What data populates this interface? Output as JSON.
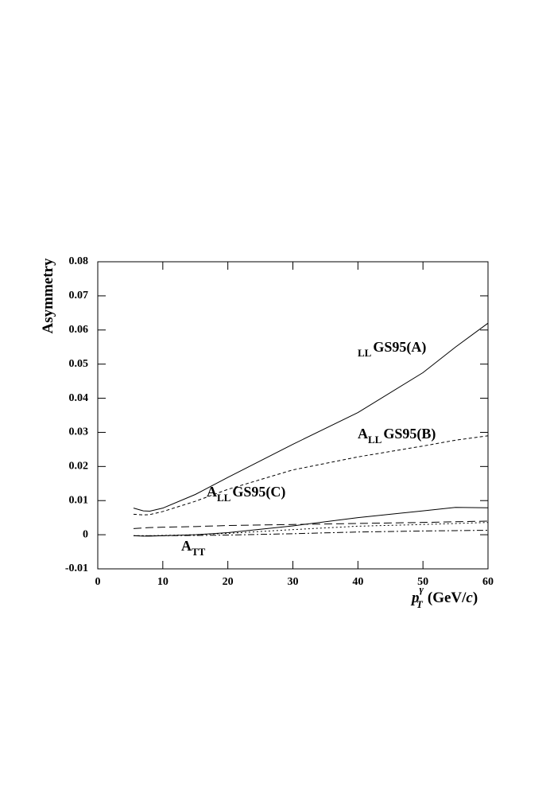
{
  "chart_data": {
    "type": "line",
    "ylabel": "Asymmetry",
    "xlabel": {
      "p": "p",
      "sup": "γ",
      "sub": "T",
      "unit_start": "(GeV/",
      "unit_c": "c",
      "unit_end": ")"
    },
    "xlim": [
      0,
      60
    ],
    "xticks": [
      0,
      10,
      20,
      30,
      40,
      50,
      60
    ],
    "ylim": [
      -0.01,
      0.08
    ],
    "yticks": [
      -0.01,
      0,
      0.01,
      0.02,
      0.03,
      0.04,
      0.05,
      0.06,
      0.07,
      0.08
    ],
    "x": [
      5.5,
      7,
      8,
      10,
      15,
      20,
      30,
      40,
      50,
      55,
      60
    ],
    "series": [
      {
        "color": "#000000",
        "dash": "solid",
        "values": [
          0.0078,
          0.007,
          0.0069,
          0.0078,
          0.0118,
          0.0168,
          0.0265,
          0.0358,
          0.0475,
          0.055,
          0.062
        ]
      },
      {
        "color": "#000000",
        "dash": "dashed",
        "values": [
          0.006,
          0.0058,
          0.0059,
          0.0068,
          0.0098,
          0.0133,
          0.019,
          0.0228,
          0.026,
          0.0277,
          0.029
        ]
      },
      {
        "color": "#000000",
        "dash": "solid",
        "values": [
          -0.0003,
          -0.0004,
          -0.0004,
          -0.0003,
          0,
          0.0006,
          0.0026,
          0.005,
          0.007,
          0.008,
          0.0079
        ]
      },
      {
        "color": "#000000",
        "dash": "longdash",
        "values": [
          0.0018,
          0.002,
          0.0021,
          0.0022,
          0.0024,
          0.0027,
          0.003,
          0.0033,
          0.0036,
          0.0038,
          0.004
        ]
      },
      {
        "color": "#000000",
        "dash": "dotted",
        "values": [
          -0.0003,
          -0.0003,
          -0.0003,
          -0.0002,
          0,
          0.0004,
          0.0015,
          0.0025,
          0.003,
          0.0033,
          0.0036
        ]
      },
      {
        "color": "#000000",
        "dash": "dashdot",
        "values": [
          -0.0003,
          -0.0003,
          -0.0003,
          -0.0003,
          -0.0002,
          -0.0001,
          0.0003,
          0.0008,
          0.0011,
          0.0012,
          0.0013
        ]
      }
    ],
    "annotations": [
      {
        "sub": "LL",
        "rest": "GS95(A)"
      },
      {
        "main": "A",
        "sub": "LL",
        "rest": "GS95(B)"
      },
      {
        "main": "A",
        "sub": "LL",
        "rest": "GS95(C)"
      },
      {
        "main": "A",
        "sub": "TT"
      }
    ]
  }
}
